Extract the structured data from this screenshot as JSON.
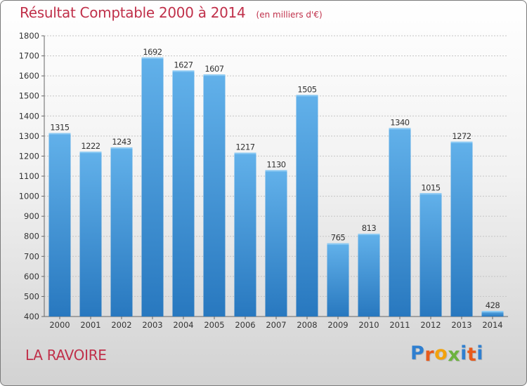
{
  "header": {
    "title": "Résultat Comptable 2000 à 2014",
    "unit": "(en milliers d'€)"
  },
  "footer": {
    "commune": "LA RAVOIRE"
  },
  "logo": {
    "letters": [
      "P",
      "r",
      "o",
      "x",
      "i",
      "t",
      "i"
    ],
    "colors": [
      "#2f7fd0",
      "#e85a1b",
      "#f2a20c",
      "#6cb33e",
      "#2f7fd0",
      "#e85a1b",
      "#2f7fd0"
    ]
  },
  "colors": {
    "bar_light": "#62b1ea",
    "bar_dark": "#2878bf",
    "title": "#c0304a"
  },
  "chart_data": {
    "type": "bar",
    "title": "Résultat Comptable 2000 à 2014",
    "subtitle": "(en milliers d'€)",
    "categories": [
      "2000",
      "2001",
      "2002",
      "2003",
      "2004",
      "2005",
      "2006",
      "2007",
      "2008",
      "2009",
      "2010",
      "2011",
      "2012",
      "2013",
      "2014"
    ],
    "values": [
      1315,
      1222,
      1243,
      1692,
      1627,
      1607,
      1217,
      1130,
      1505,
      765,
      813,
      1340,
      1015,
      1272,
      428
    ],
    "ylim": [
      400,
      1800
    ],
    "yticks": [
      400,
      500,
      600,
      700,
      800,
      900,
      1000,
      1100,
      1200,
      1300,
      1400,
      1500,
      1600,
      1700,
      1800
    ],
    "grid": true,
    "data_labels": true
  }
}
